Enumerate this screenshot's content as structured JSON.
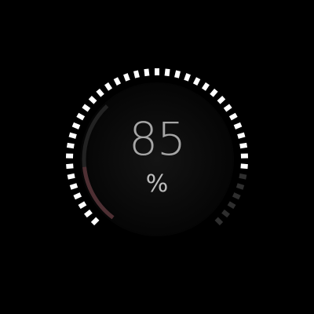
{
  "gauge": {
    "value": "85",
    "unit": "%",
    "level_percent": 85,
    "colors": {
      "background": "#000000",
      "tick_active": "#ffffff",
      "tick_inactive": "#2e2e2e",
      "inner_arc": "#222222",
      "warning_arc": "#4e2f33",
      "value_text": "#a6a6a6",
      "unit_text": "#bdbdbd"
    }
  }
}
